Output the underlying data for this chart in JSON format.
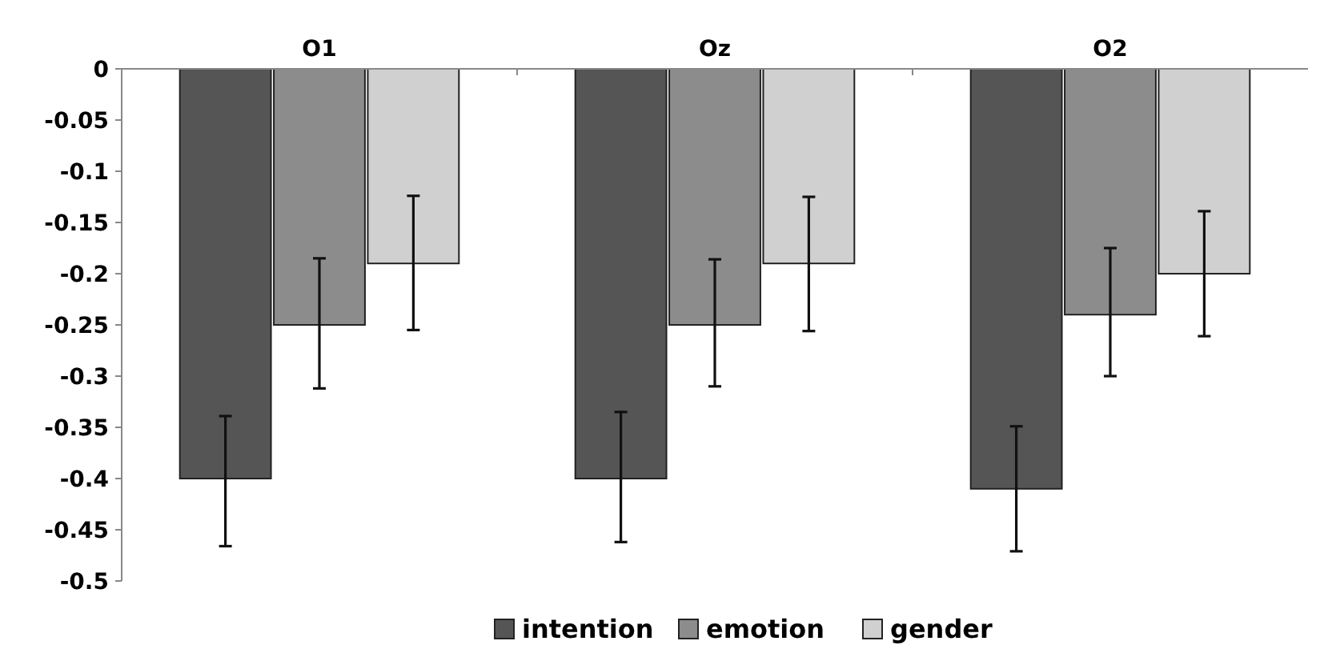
{
  "chart_data": {
    "type": "bar",
    "categories": [
      "O1",
      "Oz",
      "O2"
    ],
    "series": [
      {
        "name": "intention",
        "color": "#555555",
        "values": [
          -0.4,
          -0.4,
          -0.41
        ],
        "errors": [
          [
            -0.466,
            -0.339
          ],
          [
            -0.462,
            -0.335
          ],
          [
            -0.471,
            -0.349
          ]
        ]
      },
      {
        "name": "emotion",
        "color": "#8c8c8c",
        "values": [
          -0.25,
          -0.25,
          -0.24
        ],
        "errors": [
          [
            -0.312,
            -0.185
          ],
          [
            -0.31,
            -0.186
          ],
          [
            -0.3,
            -0.175
          ]
        ]
      },
      {
        "name": "gender",
        "color": "#d0d0d0",
        "values": [
          -0.19,
          -0.19,
          -0.2
        ],
        "errors": [
          [
            -0.255,
            -0.124
          ],
          [
            -0.256,
            -0.125
          ],
          [
            -0.261,
            -0.139
          ]
        ]
      }
    ],
    "ylim": [
      -0.5,
      0
    ],
    "yticks": [
      0,
      -0.05,
      -0.1,
      -0.15,
      -0.2,
      -0.25,
      -0.3,
      -0.35,
      -0.4,
      -0.45,
      -0.5
    ],
    "grid": false,
    "legend": "bottom"
  }
}
